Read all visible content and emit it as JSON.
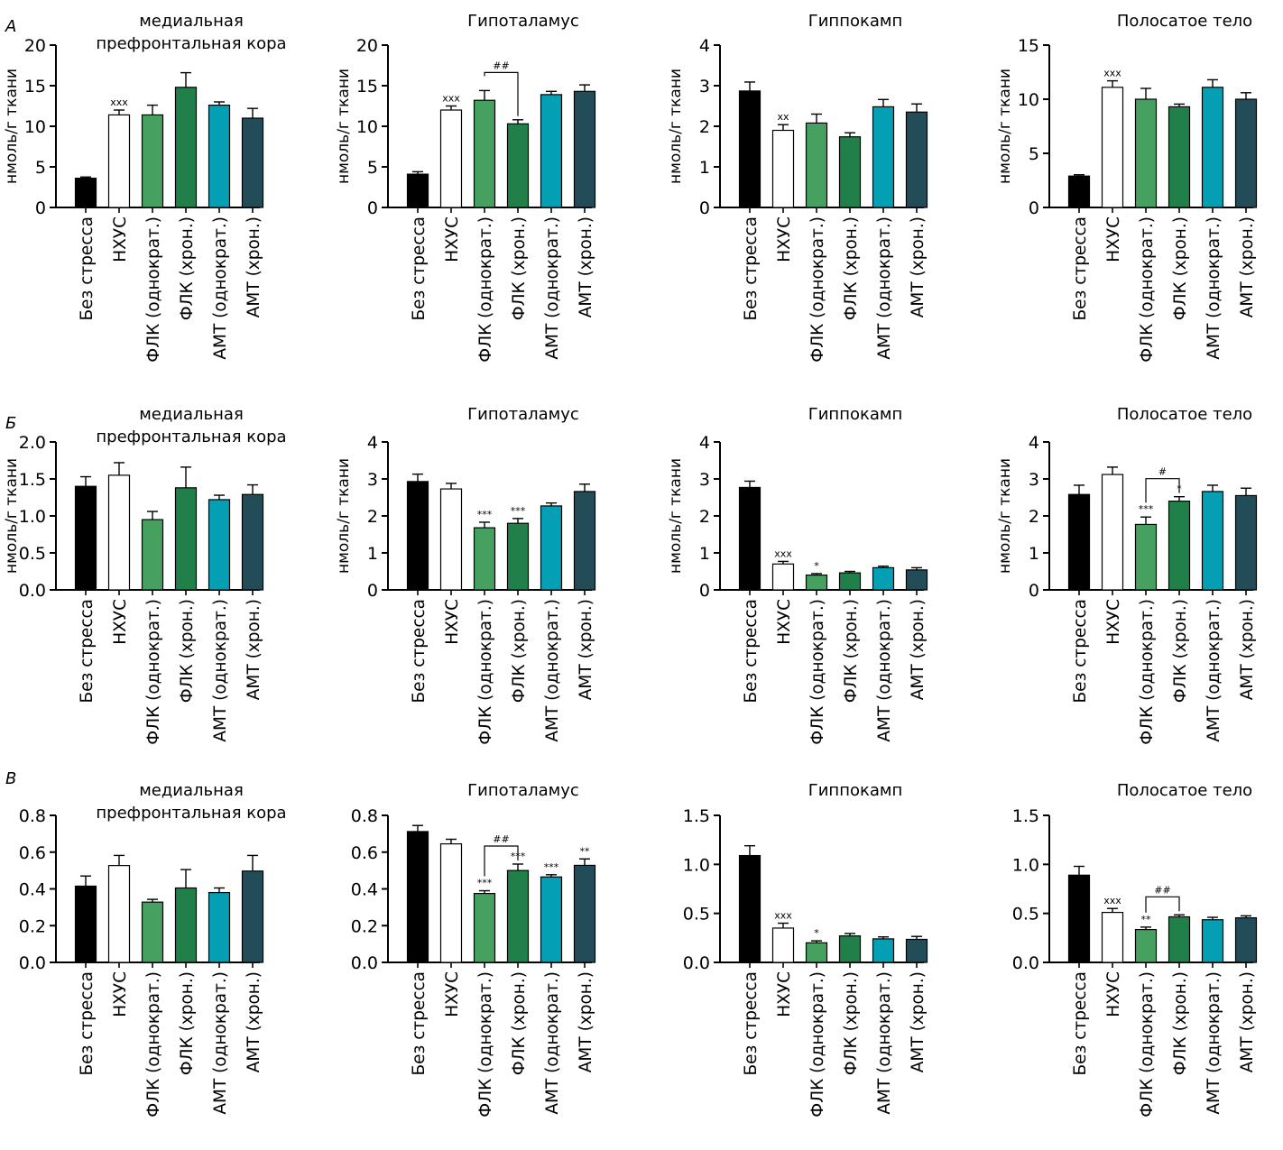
{
  "categories": [
    "Без стресса",
    "НХУС",
    "ФЛК (однократ.)",
    "ФЛК (хрон.)",
    "АМТ (однократ.)",
    "АМТ (хрон.)"
  ],
  "colors": [
    "#000000",
    "#ffffff",
    "#46a060",
    "#21804a",
    "#059fb4",
    "#214c58"
  ],
  "ylabel": "нмоль/г ткани",
  "rows": [
    {
      "label": "А"
    },
    {
      "label": "Б"
    },
    {
      "label": "В"
    }
  ],
  "chart_data": [
    {
      "type": "bar",
      "panel": "А",
      "title": [
        "медиальная",
        "префронтальная кора"
      ],
      "ylabel": "нмоль/г ткани",
      "ylim": [
        0,
        20
      ],
      "ticks": [
        "0",
        "5",
        "10",
        "15",
        "20"
      ],
      "values": [
        3.6,
        11.4,
        11.4,
        14.8,
        12.6,
        11.0
      ],
      "errors": [
        0.15,
        0.6,
        1.2,
        1.8,
        0.4,
        1.2
      ],
      "annotations": [
        {
          "bar": 1,
          "text": "xxx"
        }
      ],
      "brackets": []
    },
    {
      "type": "bar",
      "panel": "А",
      "title": [
        "Гипоталамус"
      ],
      "ylabel": "нмоль/г ткани",
      "ylim": [
        0,
        20
      ],
      "ticks": [
        "0",
        "5",
        "10",
        "15",
        "20"
      ],
      "values": [
        4.1,
        12.0,
        13.2,
        10.3,
        13.9,
        14.3
      ],
      "errors": [
        0.3,
        0.5,
        1.2,
        0.5,
        0.4,
        0.8
      ],
      "annotations": [
        {
          "bar": 1,
          "text": "xxx"
        }
      ],
      "brackets": [
        {
          "from": 2,
          "to": 3,
          "text": "##"
        }
      ]
    },
    {
      "type": "bar",
      "panel": "А",
      "title": [
        "Гиппокамп"
      ],
      "ylabel": "нмоль/г ткани",
      "ylim": [
        0,
        4
      ],
      "ticks": [
        "0",
        "1",
        "2",
        "3",
        "4"
      ],
      "values": [
        2.87,
        1.9,
        2.08,
        1.74,
        2.48,
        2.35
      ],
      "errors": [
        0.22,
        0.14,
        0.22,
        0.1,
        0.18,
        0.2
      ],
      "annotations": [
        {
          "bar": 1,
          "text": "xx"
        }
      ],
      "brackets": []
    },
    {
      "type": "bar",
      "panel": "А",
      "title": [
        "Полосатое тело"
      ],
      "ylabel": "нмоль/г ткани",
      "ylim": [
        0,
        15
      ],
      "ticks": [
        "0",
        "5",
        "10",
        "15"
      ],
      "values": [
        2.9,
        11.1,
        10.0,
        9.3,
        11.1,
        10.0
      ],
      "errors": [
        0.12,
        0.6,
        1.0,
        0.25,
        0.7,
        0.6
      ],
      "annotations": [
        {
          "bar": 1,
          "text": "xxx"
        }
      ],
      "brackets": []
    },
    {
      "type": "bar",
      "panel": "Б",
      "title": [
        "медиальная",
        "префронтальная кора"
      ],
      "ylabel": "нмоль/г ткани",
      "ylim": [
        0,
        2.0
      ],
      "ticks": [
        "0.0",
        "0.5",
        "1.0",
        "1.5",
        "2.0"
      ],
      "values": [
        1.4,
        1.55,
        0.95,
        1.38,
        1.22,
        1.29
      ],
      "errors": [
        0.13,
        0.17,
        0.11,
        0.28,
        0.06,
        0.13
      ],
      "annotations": [],
      "brackets": []
    },
    {
      "type": "bar",
      "panel": "Б",
      "title": [
        "Гипоталамус"
      ],
      "ylabel": "нмоль/г ткани",
      "ylim": [
        0,
        4
      ],
      "ticks": [
        "0",
        "1",
        "2",
        "3",
        "4"
      ],
      "values": [
        2.93,
        2.73,
        1.68,
        1.8,
        2.27,
        2.66
      ],
      "errors": [
        0.2,
        0.15,
        0.15,
        0.13,
        0.08,
        0.2
      ],
      "annotations": [
        {
          "bar": 2,
          "text": "***"
        },
        {
          "bar": 3,
          "text": "***"
        }
      ],
      "brackets": []
    },
    {
      "type": "bar",
      "panel": "Б",
      "title": [
        "Гиппокамп"
      ],
      "ylabel": "нмоль/г ткани",
      "ylim": [
        0,
        4
      ],
      "ticks": [
        "0",
        "1",
        "2",
        "3",
        "4"
      ],
      "values": [
        2.77,
        0.7,
        0.4,
        0.46,
        0.6,
        0.54
      ],
      "errors": [
        0.17,
        0.07,
        0.04,
        0.04,
        0.04,
        0.06
      ],
      "annotations": [
        {
          "bar": 1,
          "text": "xxx"
        },
        {
          "bar": 2,
          "text": "*"
        }
      ],
      "brackets": []
    },
    {
      "type": "bar",
      "panel": "Б",
      "title": [
        "Полосатое тело"
      ],
      "ylabel": "нмоль/г ткани",
      "ylim": [
        0,
        4
      ],
      "ticks": [
        "0",
        "1",
        "2",
        "3",
        "4"
      ],
      "values": [
        2.58,
        3.12,
        1.77,
        2.4,
        2.66,
        2.55
      ],
      "errors": [
        0.25,
        0.2,
        0.2,
        0.12,
        0.17,
        0.2
      ],
      "annotations": [
        {
          "bar": 2,
          "text": "***"
        },
        {
          "bar": 3,
          "text": "*"
        }
      ],
      "brackets": [
        {
          "from": 2,
          "to": 3,
          "text": "#"
        }
      ]
    },
    {
      "type": "bar",
      "panel": "В",
      "title": [
        "медиальная",
        "префронтальная кора"
      ],
      "ylabel": "",
      "ylim": [
        0,
        0.8
      ],
      "ticks": [
        "0.0",
        "0.2",
        "0.4",
        "0.6",
        "0.8"
      ],
      "values": [
        0.415,
        0.527,
        0.328,
        0.405,
        0.38,
        0.497
      ],
      "errors": [
        0.055,
        0.055,
        0.015,
        0.1,
        0.025,
        0.085
      ],
      "annotations": [],
      "brackets": []
    },
    {
      "type": "bar",
      "panel": "В",
      "title": [
        "Гипоталамус"
      ],
      "ylabel": "",
      "ylim": [
        0,
        0.8
      ],
      "ticks": [
        "0.0",
        "0.2",
        "0.4",
        "0.6",
        "0.8"
      ],
      "values": [
        0.712,
        0.645,
        0.375,
        0.5,
        0.465,
        0.528
      ],
      "errors": [
        0.033,
        0.025,
        0.015,
        0.035,
        0.012,
        0.035
      ],
      "annotations": [
        {
          "bar": 2,
          "text": "***"
        },
        {
          "bar": 3,
          "text": "***"
        },
        {
          "bar": 4,
          "text": "***"
        },
        {
          "bar": 5,
          "text": "**"
        }
      ],
      "brackets": [
        {
          "from": 2,
          "to": 3,
          "text": "##"
        }
      ]
    },
    {
      "type": "bar",
      "panel": "В",
      "title": [
        "Гиппокамп"
      ],
      "ylabel": "",
      "ylim": [
        0,
        1.5
      ],
      "ticks": [
        "0.0",
        "0.5",
        "1.0",
        "1.5"
      ],
      "values": [
        1.09,
        0.35,
        0.2,
        0.27,
        0.24,
        0.235
      ],
      "errors": [
        0.1,
        0.05,
        0.02,
        0.025,
        0.02,
        0.03
      ],
      "annotations": [
        {
          "bar": 1,
          "text": "xxx"
        },
        {
          "bar": 2,
          "text": "*"
        }
      ],
      "brackets": []
    },
    {
      "type": "bar",
      "panel": "В",
      "title": [
        "Полосатое тело"
      ],
      "ylabel": "",
      "ylim": [
        0,
        1.5
      ],
      "ticks": [
        "0.0",
        "0.5",
        "1.0",
        "1.5"
      ],
      "values": [
        0.89,
        0.51,
        0.335,
        0.465,
        0.435,
        0.455
      ],
      "errors": [
        0.09,
        0.04,
        0.025,
        0.02,
        0.025,
        0.02
      ],
      "annotations": [
        {
          "bar": 1,
          "text": "xxx"
        },
        {
          "bar": 2,
          "text": "**"
        }
      ],
      "brackets": [
        {
          "from": 2,
          "to": 3,
          "text": "##"
        }
      ]
    }
  ]
}
